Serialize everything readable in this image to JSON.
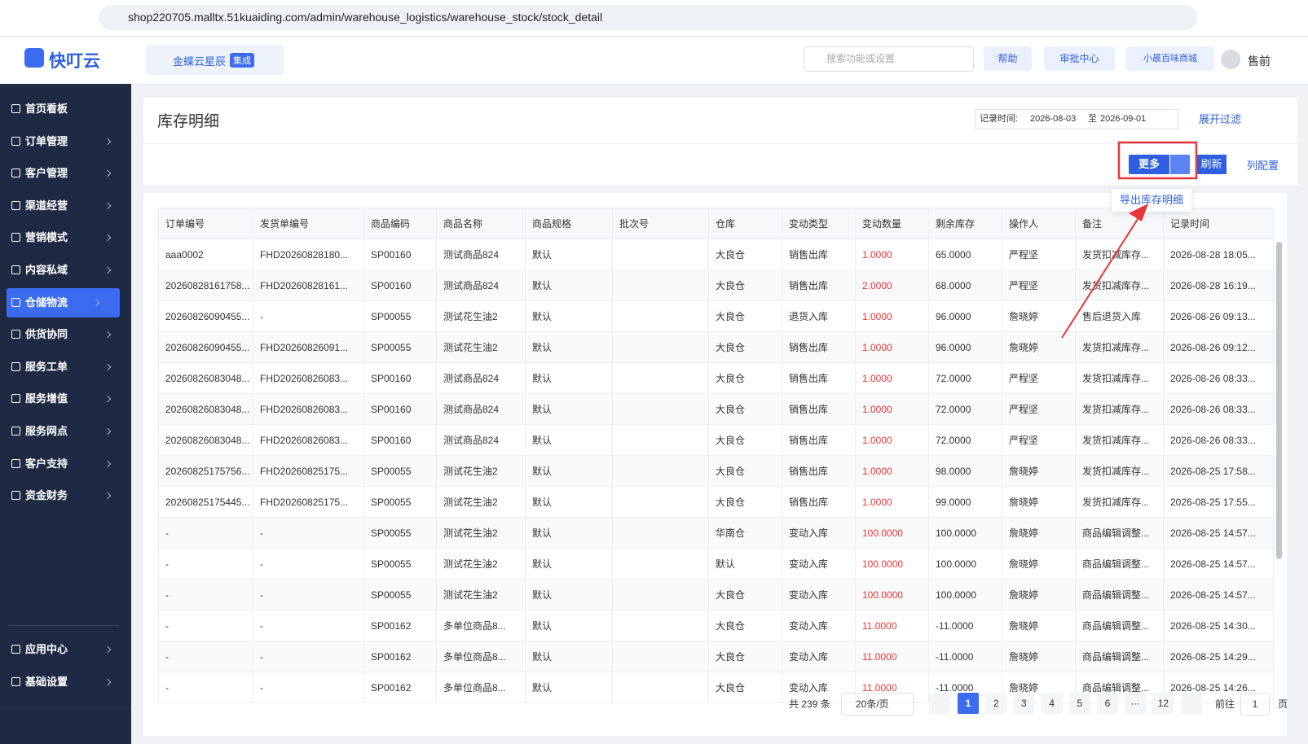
{
  "browser": {
    "url": "shop220705.malltx.51kuaiding.com/admin/warehouse_logistics/warehouse_stock/stock_detail"
  },
  "header": {
    "logo": "快叮云",
    "integration": "金蝶云星辰",
    "integration_badge": "集成",
    "search_placeholder": "搜索功能或设置",
    "help": "帮助",
    "approval": "审批中心",
    "store": "小晨百味商城",
    "user": "售前"
  },
  "sidebar": {
    "menu": [
      "首页看板",
      "订单管理",
      "客户管理",
      "渠道经营",
      "营销模式",
      "内容私域",
      "仓储物流",
      "供货协同",
      "服务工单",
      "服务增值",
      "服务网点",
      "客户支持",
      "资金财务"
    ],
    "bottom_menu": [
      "应用中心",
      "基础设置"
    ],
    "active_index": 6
  },
  "page": {
    "title": "库存明细",
    "date_label": "记录时间:",
    "date_start": "2026-08-03",
    "date_sep": "至",
    "date_end": "2026-09-01",
    "filter_toggle": "展开过滤",
    "more": "更多",
    "refresh": "刷新",
    "columns_config": "列配置",
    "dropdown_item": "导出库存明细"
  },
  "table": {
    "columns": [
      "订单编号",
      "发货单编号",
      "商品编码",
      "商品名称",
      "商品规格",
      "批次号",
      "仓库",
      "变动类型",
      "变动数量",
      "剩余库存",
      "操作人",
      "备注",
      "记录时间"
    ],
    "highlight_column": 8,
    "rows": [
      [
        "aaa0002",
        "FHD20260828180...",
        "SP00160",
        "测试商品824",
        "默认",
        null,
        "大良仓",
        "销售出库",
        "1.0000",
        "65.0000",
        "严程坚",
        "发货扣减库存...",
        "2026-08-28 18:05..."
      ],
      [
        "20260828161758...",
        "FHD20260828161...",
        "SP00160",
        "测试商品824",
        "默认",
        null,
        "大良仓",
        "销售出库",
        "2.0000",
        "68.0000",
        "严程坚",
        "发货扣减库存...",
        "2026-08-28 16:19..."
      ],
      [
        "20260826090455...",
        "-",
        "SP00055",
        "测试花生油2",
        "默认",
        null,
        "大良仓",
        "退货入库",
        "1.0000",
        "96.0000",
        "詹晓婷",
        "售后退货入库",
        "2026-08-26 09:13..."
      ],
      [
        "20260826090455...",
        "FHD20260826091...",
        "SP00055",
        "测试花生油2",
        "默认",
        null,
        "大良仓",
        "销售出库",
        "1.0000",
        "96.0000",
        "詹晓婷",
        "发货扣减库存...",
        "2026-08-26 09:12..."
      ],
      [
        "20260826083048...",
        "FHD20260826083...",
        "SP00160",
        "测试商品824",
        "默认",
        null,
        "大良仓",
        "销售出库",
        "1.0000",
        "72.0000",
        "严程坚",
        "发货扣减库存...",
        "2026-08-26 08:33..."
      ],
      [
        "20260826083048...",
        "FHD20260826083...",
        "SP00160",
        "测试商品824",
        "默认",
        null,
        "大良仓",
        "销售出库",
        "1.0000",
        "72.0000",
        "严程坚",
        "发货扣减库存...",
        "2026-08-26 08:33..."
      ],
      [
        "20260826083048...",
        "FHD20260826083...",
        "SP00160",
        "测试商品824",
        "默认",
        null,
        "大良仓",
        "销售出库",
        "1.0000",
        "72.0000",
        "严程坚",
        "发货扣减库存...",
        "2026-08-26 08:33..."
      ],
      [
        "20260825175756...",
        "FHD20260825175...",
        "SP00055",
        "测试花生油2",
        "默认",
        null,
        "大良仓",
        "销售出库",
        "1.0000",
        "98.0000",
        "詹晓婷",
        "发货扣减库存...",
        "2026-08-25 17:58..."
      ],
      [
        "20260825175445...",
        "FHD20260825175...",
        "SP00055",
        "测试花生油2",
        "默认",
        null,
        "大良仓",
        "销售出库",
        "1.0000",
        "99.0000",
        "詹晓婷",
        "发货扣减库存...",
        "2026-08-25 17:55..."
      ],
      [
        "-",
        "-",
        "SP00055",
        "测试花生油2",
        "默认",
        null,
        "华南仓",
        "变动入库",
        "100.0000",
        "100.0000",
        "詹晓婷",
        "商品编辑调整...",
        "2026-08-25 14:57..."
      ],
      [
        "-",
        "-",
        "SP00055",
        "测试花生油2",
        "默认",
        null,
        "默认",
        "变动入库",
        "100.0000",
        "100.0000",
        "詹晓婷",
        "商品编辑调整...",
        "2026-08-25 14:57..."
      ],
      [
        "-",
        "-",
        "SP00055",
        "测试花生油2",
        "默认",
        null,
        "大良仓",
        "变动入库",
        "100.0000",
        "100.0000",
        "詹晓婷",
        "商品编辑调整...",
        "2026-08-25 14:57..."
      ],
      [
        "-",
        "-",
        "SP00162",
        "多单位商品8...",
        "默认",
        null,
        "大良仓",
        "变动入库",
        "11.0000",
        "-11.0000",
        "詹晓婷",
        "商品编辑调整...",
        "2026-08-25 14:30..."
      ],
      [
        "-",
        "-",
        "SP00162",
        "多单位商品8...",
        "默认",
        null,
        "大良仓",
        "变动入库",
        "11.0000",
        "-11.0000",
        "詹晓婷",
        "商品编辑调整...",
        "2026-08-25 14:29..."
      ],
      [
        "-",
        "-",
        "SP00162",
        "多单位商品8...",
        "默认",
        null,
        "大良仓",
        "变动入库",
        "11.0000",
        "-11.0000",
        "詹晓婷",
        "商品编辑调整...",
        "2026-08-25 14:26..."
      ]
    ]
  },
  "pagination": {
    "total": "共 239 条",
    "page_size": "20条/页",
    "pages": [
      "1",
      "2",
      "3",
      "4",
      "5",
      "6",
      "···",
      "12"
    ],
    "current_index": 0,
    "goto_label": "前往",
    "goto_value": "1",
    "goto_suffix": "页"
  }
}
